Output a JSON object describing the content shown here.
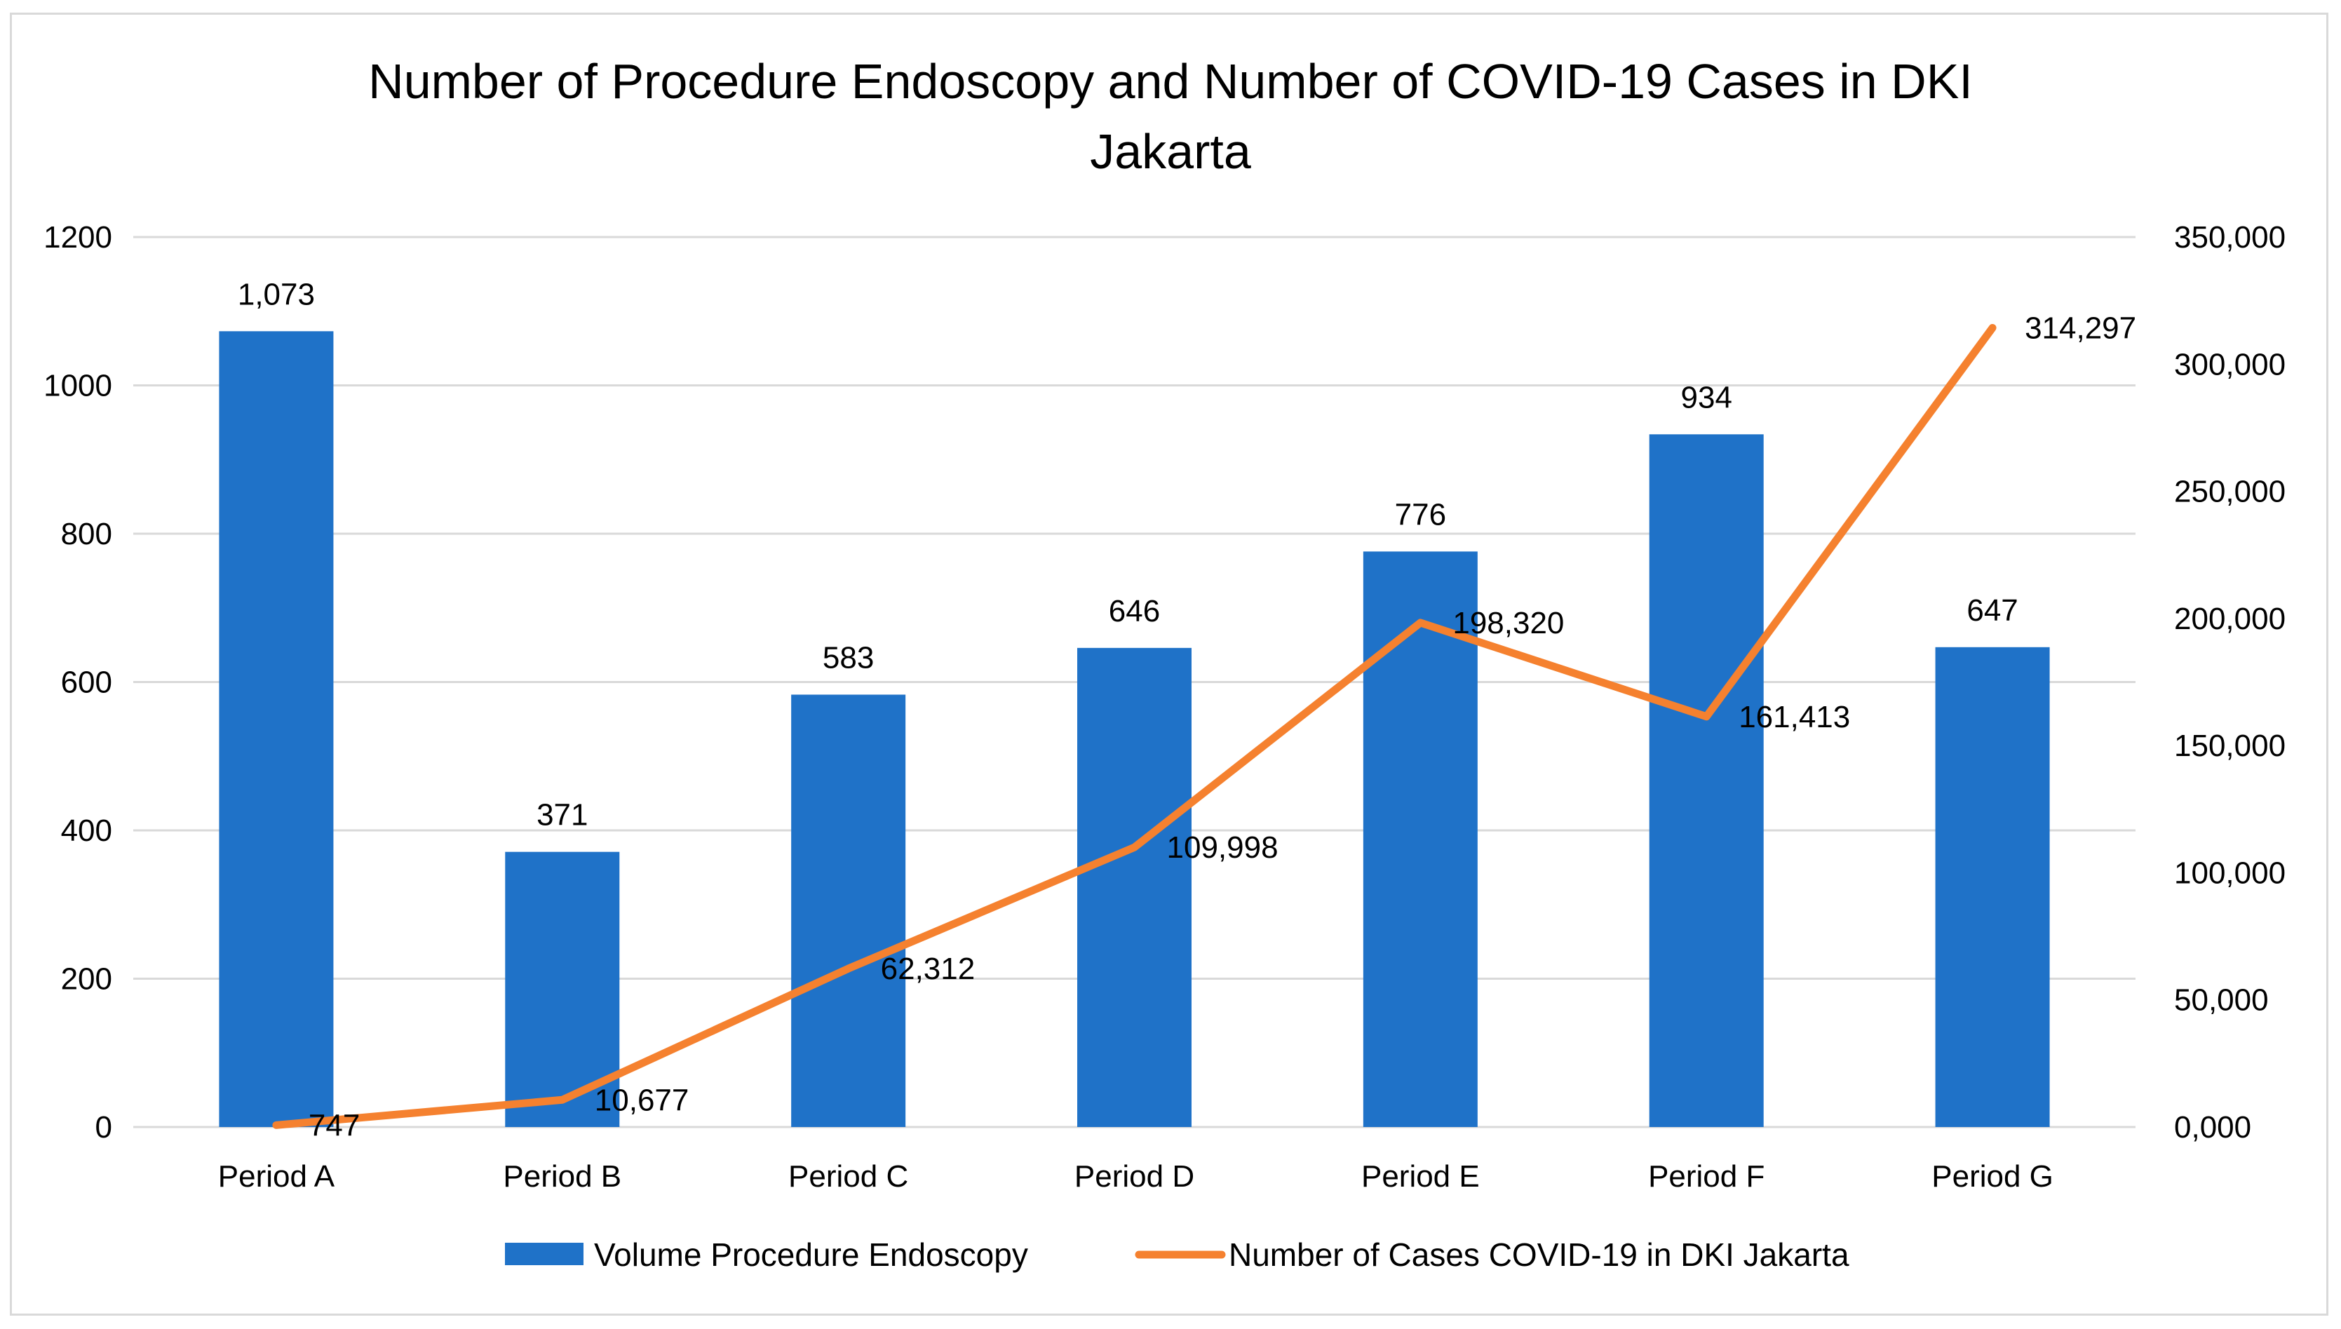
{
  "chart_data": {
    "type": "bar+line",
    "title": "Number of Procedure Endoscopy and Number of COVID-19 Cases in DKI Jakarta",
    "title_lines": [
      "Number of Procedure Endoscopy and Number of COVID-19 Cases in DKI",
      "Jakarta"
    ],
    "categories": [
      "Period A",
      "Period B",
      "Period C",
      "Period D",
      "Period E",
      "Period F",
      "Period G"
    ],
    "series": [
      {
        "name": "Volume Procedure Endoscopy",
        "type": "bar",
        "axis": "left",
        "color": "#1F72C8",
        "values": [
          1073,
          371,
          583,
          646,
          776,
          934,
          647
        ],
        "labels": [
          "1,073",
          "371",
          "583",
          "646",
          "776",
          "934",
          "647"
        ]
      },
      {
        "name": "Number of Cases COVID-19 in DKI Jakarta",
        "type": "line",
        "axis": "right",
        "color": "#F5812F",
        "values": [
          747,
          10677,
          62312,
          109998,
          198320,
          161413,
          314297
        ],
        "labels": [
          "747",
          "10,677",
          "62,312",
          "109,998",
          "198,320",
          "161,413",
          "314,297"
        ]
      }
    ],
    "y_left": {
      "min": 0,
      "max": 1200,
      "ticks": [
        0,
        200,
        400,
        600,
        800,
        1000,
        1200
      ],
      "tick_labels": [
        "0",
        "200",
        "400",
        "600",
        "800",
        "1000",
        "1200"
      ]
    },
    "y_right": {
      "min": 0,
      "max": 350000,
      "ticks": [
        0,
        50000,
        100000,
        150000,
        200000,
        250000,
        300000,
        350000
      ],
      "tick_labels": [
        "0,000",
        "50,000",
        "100,000",
        "150,000",
        "200,000",
        "250,000",
        "300,000",
        "350,000"
      ]
    },
    "gridlines": true,
    "legend_position": "bottom",
    "xlabel": "",
    "ylabel": ""
  }
}
